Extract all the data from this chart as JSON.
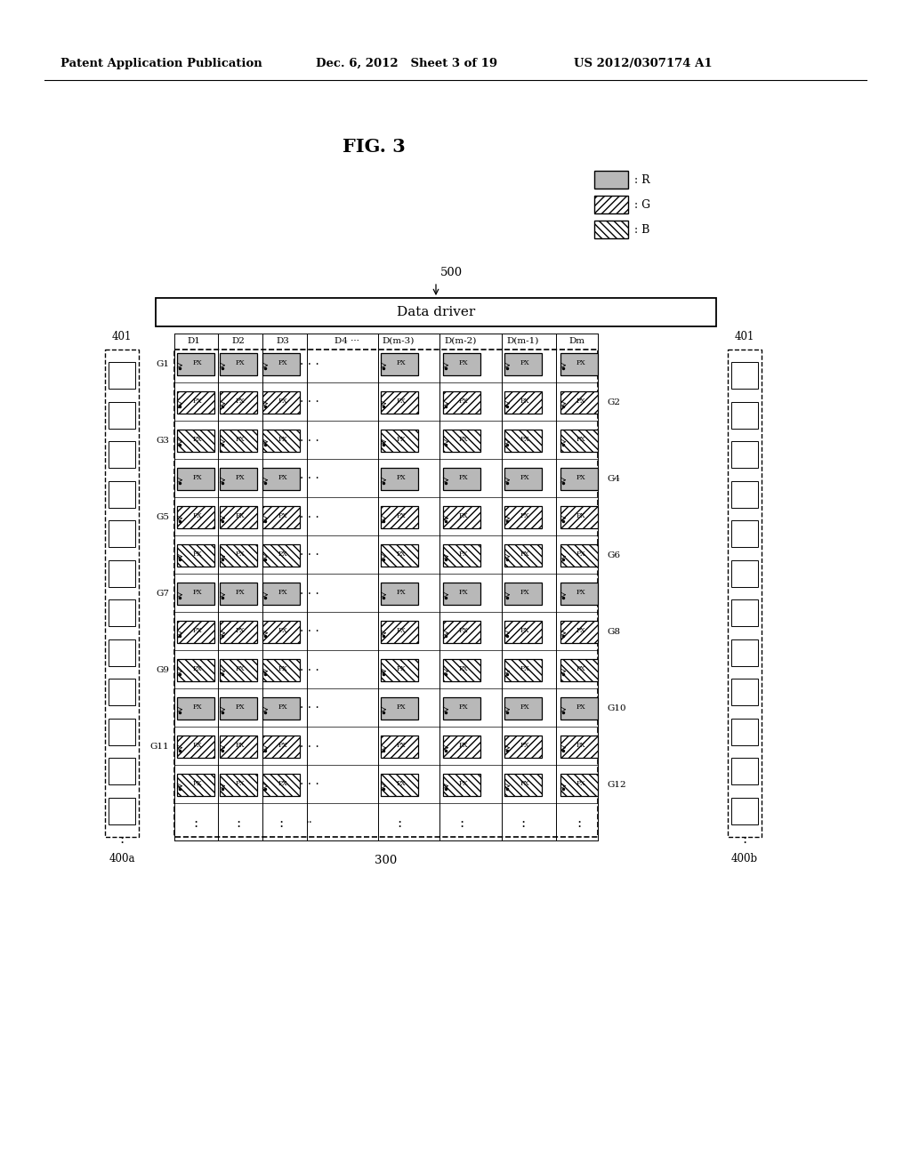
{
  "header_left": "Patent Application Publication",
  "header_mid": "Dec. 6, 2012   Sheet 3 of 19",
  "header_right": "US 2012/0307174 A1",
  "fig_label": "FIG. 3",
  "data_driver_label": "Data driver",
  "ref_500": "500",
  "ref_300": "300",
  "ref_400a": "400a",
  "ref_400b": "400b",
  "ref_401": "401",
  "col_labels": [
    "D1",
    "D2",
    "D3",
    "D4 ···",
    "D(m-3)",
    "D(m-2)",
    "D(m-1)",
    "Dm"
  ],
  "gate_odd_labels": [
    "G1",
    "G3",
    "G5",
    "G7",
    "G9",
    "G11"
  ],
  "gate_even_labels": [
    "G2",
    "G4",
    "G6",
    "G8",
    "G10",
    "G12"
  ],
  "R_color": "#b8b8b8",
  "white": "#ffffff",
  "black": "#000000",
  "row_colors": [
    0,
    1,
    2,
    0,
    1,
    2,
    0,
    1,
    2,
    0,
    1,
    2,
    0
  ]
}
